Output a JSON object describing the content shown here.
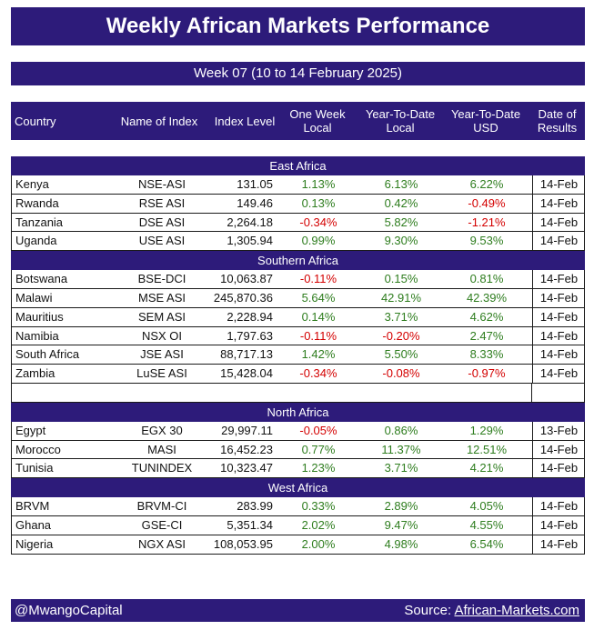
{
  "title": "Weekly African Markets Performance",
  "week": "Week 07 (10 to 14 February 2025)",
  "headers": {
    "country": "Country",
    "index": "Name of Index",
    "level": "Index Level",
    "week_1": "One Week",
    "week_2": "Local",
    "ytd_1": "Year-To-Date",
    "ytd_2": "Local",
    "usd_1": "Year-To-Date",
    "usd_2": "USD",
    "date_1": "Date of",
    "date_2": "Results"
  },
  "regions": [
    {
      "name": "East Africa",
      "rows": [
        {
          "country": "Kenya",
          "index": "NSE-ASI",
          "level": "131.05",
          "week": "1.13%",
          "ytd": "6.13%",
          "usd": "6.22%",
          "date": "14-Feb"
        },
        {
          "country": "Rwanda",
          "index": "RSE ASI",
          "level": "149.46",
          "week": "0.13%",
          "ytd": "0.42%",
          "usd": "-0.49%",
          "date": "14-Feb"
        },
        {
          "country": "Tanzania",
          "index": "DSE ASI",
          "level": "2,264.18",
          "week": "-0.34%",
          "ytd": "5.82%",
          "usd": "-1.21%",
          "date": "14-Feb"
        },
        {
          "country": "Uganda",
          "index": "USE ASI",
          "level": "1,305.94",
          "week": "0.99%",
          "ytd": "9.30%",
          "usd": "9.53%",
          "date": "14-Feb"
        }
      ]
    },
    {
      "name": "Southern Africa",
      "rows": [
        {
          "country": "Botswana",
          "index": "BSE-DCI",
          "level": "10,063.87",
          "week": "-0.11%",
          "ytd": "0.15%",
          "usd": "0.81%",
          "date": "14-Feb"
        },
        {
          "country": "Malawi",
          "index": "MSE ASI",
          "level": "245,870.36",
          "week": "5.64%",
          "ytd": "42.91%",
          "usd": "42.39%",
          "date": "14-Feb"
        },
        {
          "country": "Mauritius",
          "index": "SEM ASI",
          "level": "2,228.94",
          "week": "0.14%",
          "ytd": "3.71%",
          "usd": "4.62%",
          "date": "14-Feb"
        },
        {
          "country": "Namibia",
          "index": "NSX OI",
          "level": "1,797.63",
          "week": "-0.11%",
          "ytd": "-0.20%",
          "usd": "2.47%",
          "date": "14-Feb"
        },
        {
          "country": "South Africa",
          "index": "JSE ASI",
          "level": "88,717.13",
          "week": "1.42%",
          "ytd": "5.50%",
          "usd": "8.33%",
          "date": "14-Feb"
        },
        {
          "country": "Zambia",
          "index": "LuSE ASI",
          "level": "15,428.04",
          "week": "-0.34%",
          "ytd": "-0.08%",
          "usd": "-0.97%",
          "date": "14-Feb"
        }
      ]
    },
    {
      "name": "North Africa",
      "rows": [
        {
          "country": "Egypt",
          "index": "EGX 30",
          "level": "29,997.11",
          "week": "-0.05%",
          "ytd": "0.86%",
          "usd": "1.29%",
          "date": "13-Feb"
        },
        {
          "country": "Morocco",
          "index": "MASI",
          "level": "16,452.23",
          "week": "0.77%",
          "ytd": "11.37%",
          "usd": "12.51%",
          "date": "14-Feb"
        },
        {
          "country": "Tunisia",
          "index": "TUNINDEX",
          "level": "10,323.47",
          "week": "1.23%",
          "ytd": "3.71%",
          "usd": "4.21%",
          "date": "14-Feb"
        }
      ]
    },
    {
      "name": "West Africa",
      "rows": [
        {
          "country": "BRVM",
          "index": "BRVM-CI",
          "level": "283.99",
          "week": "0.33%",
          "ytd": "2.89%",
          "usd": "4.05%",
          "date": "14-Feb"
        },
        {
          "country": "Ghana",
          "index": "GSE-CI",
          "level": "5,351.34",
          "week": "2.02%",
          "ytd": "9.47%",
          "usd": "4.55%",
          "date": "14-Feb"
        },
        {
          "country": "Nigeria",
          "index": "NGX ASI",
          "level": "108,053.95",
          "week": "2.00%",
          "ytd": "4.98%",
          "usd": "6.54%",
          "date": "14-Feb"
        }
      ]
    }
  ],
  "footer": {
    "handle": "@MwangoCapital",
    "source_label": "Source: ",
    "source_link": "African-Markets.com"
  },
  "colors": {
    "band": "#2d1b7a",
    "positive": "#2e7d1e",
    "negative": "#d40000"
  }
}
